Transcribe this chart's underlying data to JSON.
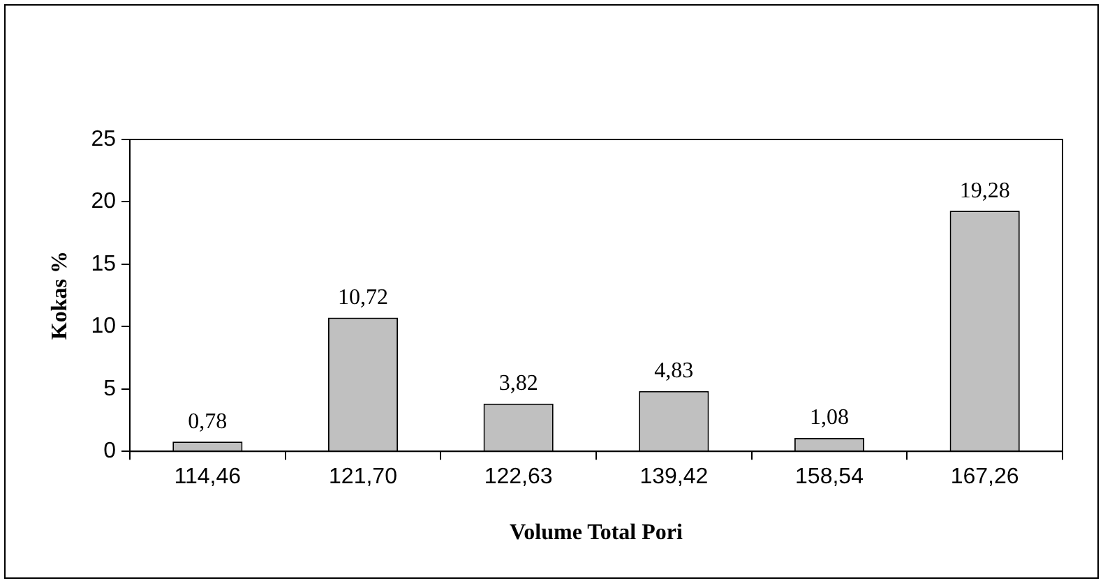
{
  "chart_data": {
    "type": "bar",
    "xlabel": "Volume Total Pori",
    "ylabel": "Kokas %",
    "categories": [
      "114,46",
      "121,70",
      "122,63",
      "139,42",
      "158,54",
      "167,26"
    ],
    "values": [
      0.78,
      10.72,
      3.82,
      4.83,
      1.08,
      19.28
    ],
    "color": "#c0c0c0",
    "ylim": [
      0,
      25
    ],
    "yticks": [
      0,
      5,
      10,
      15,
      20,
      25
    ],
    "value_labels": [
      "0,78",
      "10,72",
      "3,82",
      "4,83",
      "1,08",
      "19,28"
    ]
  }
}
